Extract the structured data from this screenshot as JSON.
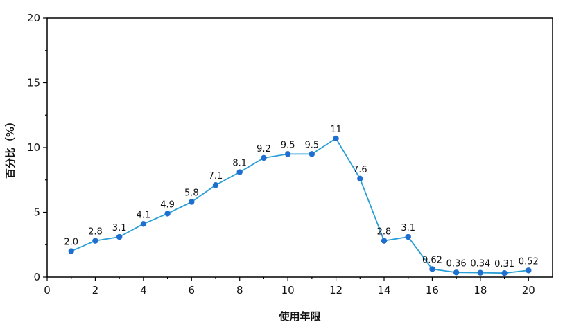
{
  "chart_data": {
    "type": "line",
    "title": "",
    "xlabel": "使用年限",
    "ylabel": "百分比（%）",
    "xlim": [
      0,
      21
    ],
    "ylim": [
      0,
      20
    ],
    "xticks": [
      0,
      2,
      4,
      6,
      8,
      10,
      12,
      14,
      16,
      18,
      20
    ],
    "yticks": [
      0,
      5,
      10,
      15,
      20
    ],
    "grid": false,
    "series_color": "#1f6fd1",
    "line_color": "#2a9fd6",
    "x": [
      1,
      2,
      3,
      4,
      5,
      6,
      7,
      8,
      9,
      10,
      11,
      12,
      13,
      14,
      15,
      16,
      17,
      18,
      19,
      20
    ],
    "values": [
      2.0,
      2.8,
      3.1,
      4.1,
      4.9,
      5.8,
      7.1,
      8.1,
      9.2,
      9.5,
      9.5,
      10.7,
      7.6,
      2.8,
      3.1,
      0.62,
      0.36,
      0.34,
      0.31,
      0.52
    ],
    "data_labels": [
      "2.0",
      "2.8",
      "3.1",
      "4.1",
      "4.9",
      "5.8",
      "7.1",
      "8.1",
      "9.2",
      "9.5",
      "9.5",
      "11",
      "7.6",
      "2.8",
      "3.1",
      "0.62",
      "0.36",
      "0.34",
      "0.31",
      "0.52"
    ]
  }
}
